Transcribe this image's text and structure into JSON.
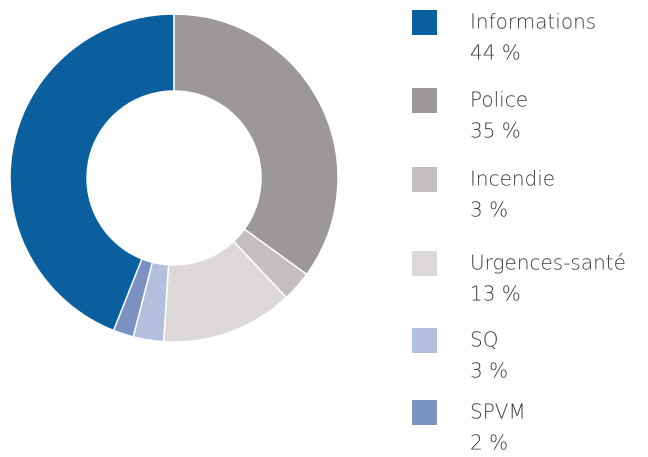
{
  "chart_data": {
    "type": "donut",
    "categories": [
      "Informations",
      "Police",
      "Incendie",
      "Urgences-santé",
      "SQ",
      "SPVM"
    ],
    "values": [
      44,
      35,
      3,
      13,
      3,
      2
    ],
    "value_labels": [
      "44 %",
      "35 %",
      "3 %",
      "13 %",
      "3 %",
      "2 %"
    ],
    "colors": [
      "#0a5f9e",
      "#9c9799",
      "#c4bebf",
      "#dcd8d8",
      "#b3c0dd",
      "#7a91c1"
    ]
  }
}
